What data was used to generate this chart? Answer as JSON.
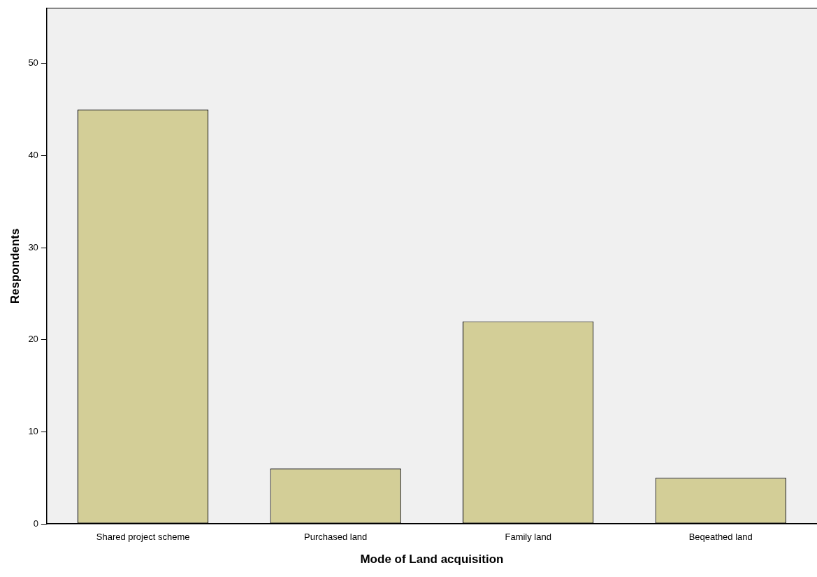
{
  "chart_data": {
    "type": "bar",
    "xlabel": "Mode of Land acquisition",
    "ylabel": "Respondents",
    "categories": [
      "Shared project scheme",
      "Purchased land",
      "Family land",
      "Beqeathed land"
    ],
    "values": [
      45,
      6,
      22,
      5
    ],
    "color": "#d3ce97",
    "ylim": [
      0,
      56
    ],
    "yticks": [
      0,
      10,
      20,
      30,
      40,
      50
    ],
    "grid": false,
    "legend": false
  }
}
